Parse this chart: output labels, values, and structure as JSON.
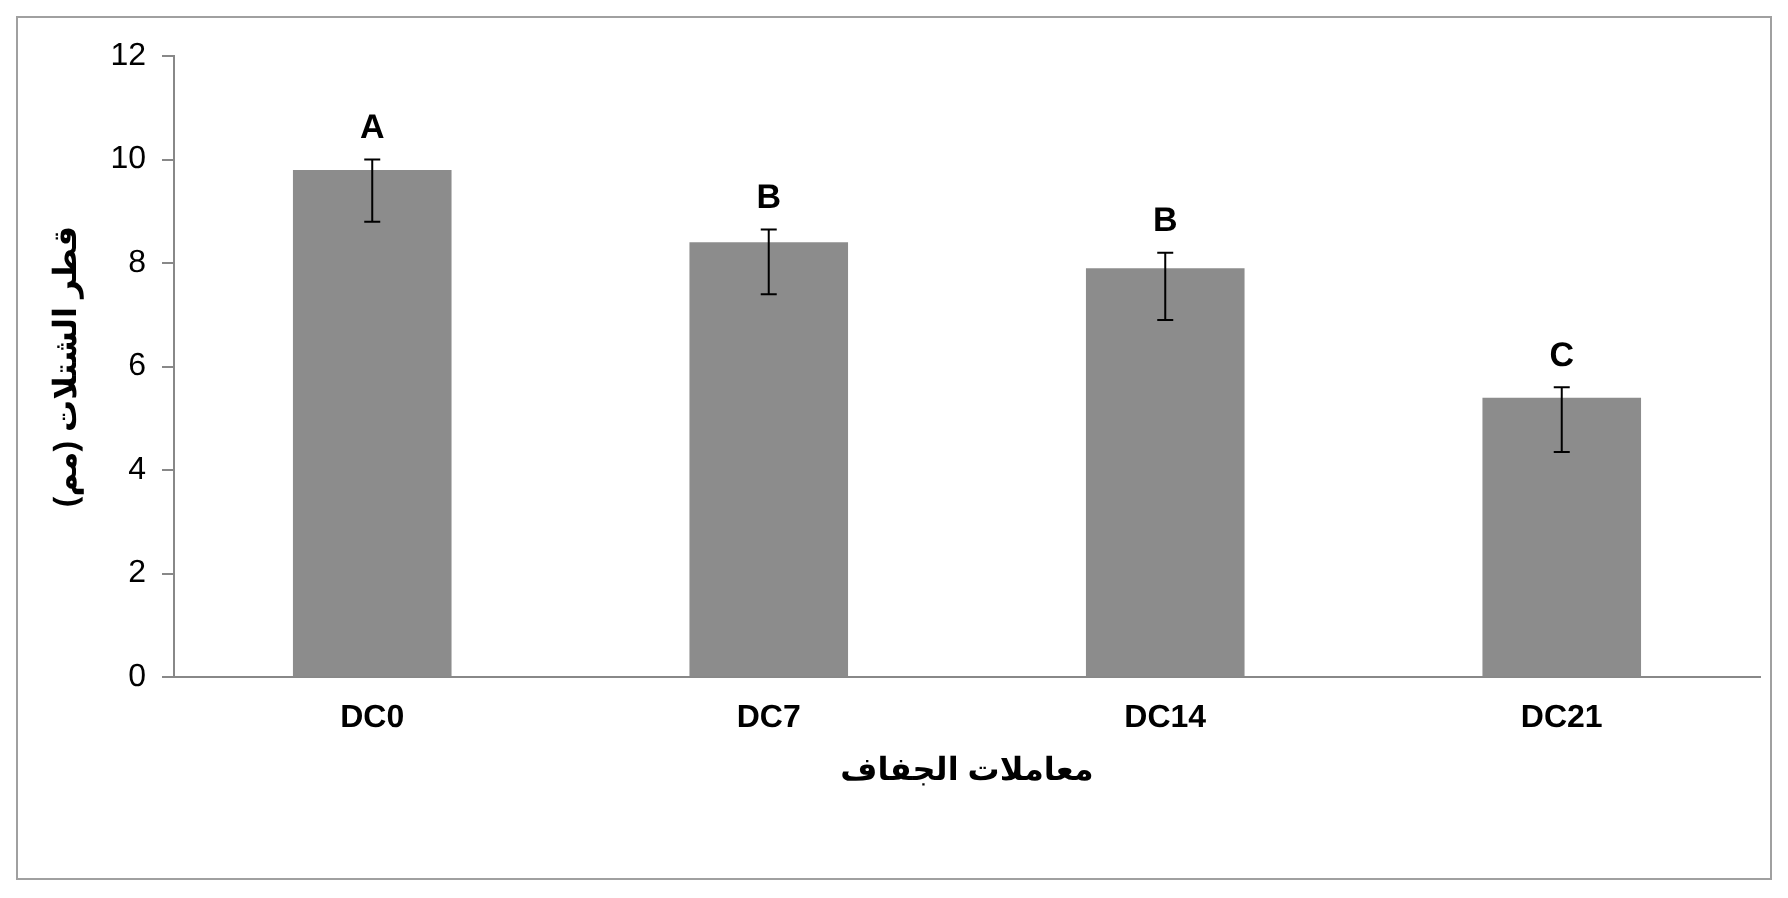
{
  "chart_data": {
    "type": "bar",
    "categories": [
      "DC0",
      "DC7",
      "DC14",
      "DC21"
    ],
    "values": [
      9.8,
      8.4,
      7.9,
      5.4
    ],
    "color": "#8c8c8c",
    "errors": [
      [
        8.8,
        10.0
      ],
      [
        7.4,
        8.65
      ],
      [
        6.9,
        8.2
      ],
      [
        4.35,
        5.6
      ]
    ],
    "ylim": [
      0,
      12
    ],
    "yticks": [
      0,
      2,
      4,
      6,
      8,
      10,
      12
    ],
    "grid": false,
    "legend": false,
    "ylabel": "قطر الشتلات (مم)",
    "xlabel": "معاملات الجفاف",
    "annotations": [
      {
        "text": "A",
        "x": "DC0",
        "y": 10.0
      },
      {
        "text": "B",
        "x": "DC7",
        "y": 8.65
      },
      {
        "text": "B",
        "x": "DC14",
        "y": 8.2
      },
      {
        "text": "C",
        "x": "DC21",
        "y": 5.6
      }
    ]
  }
}
